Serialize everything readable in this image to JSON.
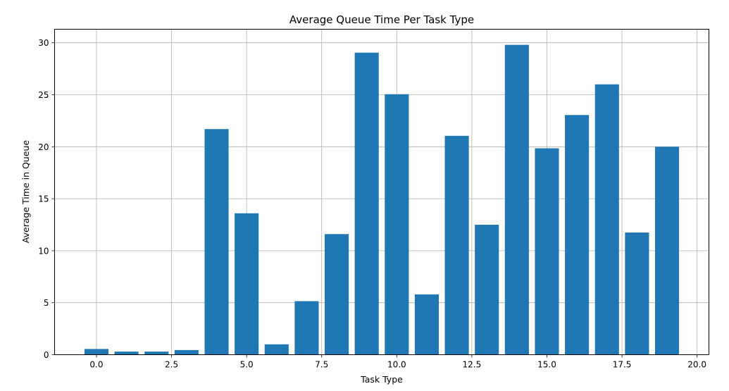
{
  "chart_data": {
    "type": "bar",
    "title": "Average Queue Time Per Task Type",
    "xlabel": "Task Type",
    "ylabel": "Average Time in Queue",
    "x": [
      0,
      1,
      2,
      3,
      4,
      5,
      6,
      7,
      8,
      9,
      10,
      11,
      12,
      13,
      14,
      15,
      16,
      17,
      18,
      19
    ],
    "values": [
      0.55,
      0.3,
      0.3,
      0.45,
      21.7,
      13.6,
      1.0,
      5.15,
      11.6,
      29.05,
      25.05,
      5.8,
      21.05,
      12.5,
      29.8,
      19.85,
      23.05,
      26.0,
      11.75,
      20.0
    ],
    "bar_width": 0.8,
    "xlim": [
      -1.395,
      20.395
    ],
    "ylim": [
      0,
      31.3
    ],
    "xticks": [
      0.0,
      2.5,
      5.0,
      7.5,
      10.0,
      12.5,
      15.0,
      17.5,
      20.0
    ],
    "xtick_labels": [
      "0.0",
      "2.5",
      "5.0",
      "7.5",
      "10.0",
      "12.5",
      "15.0",
      "17.5",
      "20.0"
    ],
    "yticks": [
      0,
      5,
      10,
      15,
      20,
      25,
      30
    ],
    "ytick_labels": [
      "0",
      "5",
      "10",
      "15",
      "20",
      "25",
      "30"
    ],
    "grid": true,
    "legend": false,
    "bar_color": "#1f77b4",
    "grid_color": "#b0b0b0"
  }
}
